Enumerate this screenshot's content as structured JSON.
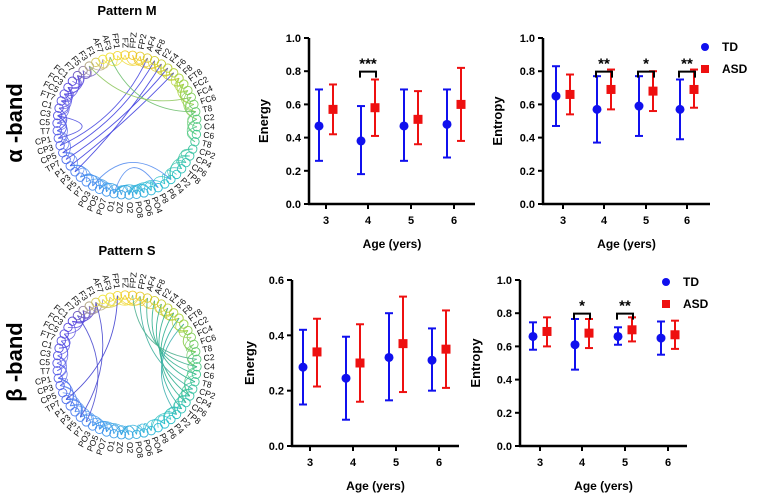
{
  "panels": [
    {
      "band_label": "α -band",
      "pattern_title": "Pattern M"
    },
    {
      "band_label": "β -band",
      "pattern_title": "Pattern S"
    }
  ],
  "electrodes": [
    "FPZ",
    "FP2",
    "AF4",
    "AF8",
    "F2",
    "F4",
    "F6",
    "F8",
    "FT8",
    "FC2",
    "FC4",
    "FC6",
    "T8",
    "C2",
    "C4",
    "C6",
    "T8",
    "CP2",
    "CP4",
    "CP6",
    "TP8",
    "P2",
    "P4",
    "P6",
    "P8",
    "PO4",
    "PO6",
    "PO8",
    "O2",
    "OZ",
    "O1",
    "PO7",
    "PO5",
    "PO3",
    "P7",
    "P5",
    "P3",
    "P1",
    "TP7",
    "CP5",
    "CP3",
    "CP1",
    "T7",
    "C5",
    "C3",
    "C1",
    "FT7",
    "FC5",
    "FC3",
    "FC1",
    "F7",
    "F5",
    "F3",
    "F1",
    "AF7",
    "AF3",
    "FP1",
    "FZ"
  ],
  "legend": {
    "td": "TD",
    "asd": "ASD"
  },
  "colors": {
    "td": "#1010ee",
    "asd": "#ee1010"
  },
  "chart_data": [
    {
      "type": "scatter",
      "title": "",
      "xlabel": "Age (yers)",
      "ylabel": "Energy",
      "categories": [
        "3",
        "4",
        "5",
        "6"
      ],
      "ylim": [
        0,
        1.0
      ],
      "yticks": [
        "0.0",
        "0.2",
        "0.4",
        "0.6",
        "0.8",
        "1.0"
      ],
      "series": [
        {
          "name": "TD",
          "values": [
            0.47,
            0.38,
            0.47,
            0.48
          ],
          "lower": [
            0.26,
            0.18,
            0.26,
            0.28
          ],
          "upper": [
            0.69,
            0.59,
            0.69,
            0.69
          ]
        },
        {
          "name": "ASD",
          "values": [
            0.57,
            0.58,
            0.51,
            0.6
          ],
          "lower": [
            0.42,
            0.41,
            0.36,
            0.38
          ],
          "upper": [
            0.72,
            0.75,
            0.68,
            0.82
          ]
        }
      ],
      "significance": [
        {
          "category": "4",
          "label": "***"
        }
      ],
      "legend": "none"
    },
    {
      "type": "scatter",
      "title": "",
      "xlabel": "Age (yers)",
      "ylabel": "Entropy",
      "categories": [
        "3",
        "4",
        "5",
        "6"
      ],
      "ylim": [
        0,
        1.0
      ],
      "yticks": [
        "0.0",
        "0.2",
        "0.4",
        "0.6",
        "0.8",
        "1.0"
      ],
      "series": [
        {
          "name": "TD",
          "values": [
            0.65,
            0.57,
            0.59,
            0.57
          ],
          "lower": [
            0.47,
            0.37,
            0.41,
            0.39
          ],
          "upper": [
            0.83,
            0.77,
            0.77,
            0.75
          ]
        },
        {
          "name": "ASD",
          "values": [
            0.66,
            0.69,
            0.68,
            0.69
          ],
          "lower": [
            0.54,
            0.57,
            0.56,
            0.58
          ],
          "upper": [
            0.78,
            0.81,
            0.8,
            0.81
          ]
        }
      ],
      "significance": [
        {
          "category": "4",
          "label": "**"
        },
        {
          "category": "5",
          "label": "*"
        },
        {
          "category": "6",
          "label": "**"
        }
      ],
      "legend": "top-right"
    },
    {
      "type": "scatter",
      "title": "",
      "xlabel": "Age (yers)",
      "ylabel": "Energy",
      "categories": [
        "3",
        "4",
        "5",
        "6"
      ],
      "ylim": [
        0,
        0.6
      ],
      "yticks": [
        "0.0",
        "0.2",
        "0.4",
        "0.6"
      ],
      "series": [
        {
          "name": "TD",
          "values": [
            0.285,
            0.245,
            0.32,
            0.31
          ],
          "lower": [
            0.15,
            0.095,
            0.165,
            0.2
          ],
          "upper": [
            0.42,
            0.395,
            0.48,
            0.425
          ]
        },
        {
          "name": "ASD",
          "values": [
            0.34,
            0.3,
            0.37,
            0.35
          ],
          "lower": [
            0.215,
            0.16,
            0.195,
            0.21
          ],
          "upper": [
            0.46,
            0.44,
            0.54,
            0.49
          ]
        }
      ],
      "significance": [],
      "legend": "none"
    },
    {
      "type": "scatter",
      "title": "",
      "xlabel": "Age (yers)",
      "ylabel": "Entropy",
      "categories": [
        "3",
        "4",
        "5",
        "6"
      ],
      "ylim": [
        0,
        1.0
      ],
      "yticks": [
        "0.0",
        "0.2",
        "0.4",
        "0.6",
        "0.8",
        "1.0"
      ],
      "series": [
        {
          "name": "TD",
          "values": [
            0.66,
            0.61,
            0.66,
            0.65
          ],
          "lower": [
            0.58,
            0.46,
            0.61,
            0.55
          ],
          "upper": [
            0.745,
            0.765,
            0.715,
            0.75
          ]
        },
        {
          "name": "ASD",
          "values": [
            0.69,
            0.68,
            0.7,
            0.67
          ],
          "lower": [
            0.6,
            0.59,
            0.63,
            0.585
          ],
          "upper": [
            0.775,
            0.765,
            0.775,
            0.755
          ]
        }
      ],
      "significance": [
        {
          "category": "4",
          "label": "*"
        },
        {
          "category": "5",
          "label": "**"
        }
      ],
      "legend": "top-right"
    }
  ]
}
